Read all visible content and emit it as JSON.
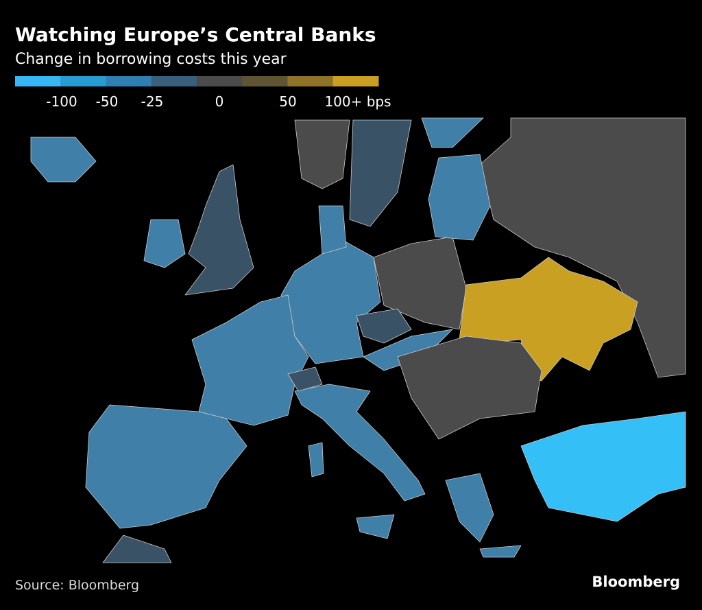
{
  "header": {
    "title": "Watching Europe’s Central Banks",
    "subtitle": "Change in borrowing costs this year"
  },
  "legend": {
    "colors": [
      "#36b6f2",
      "#2a9ad3",
      "#2f7fb3",
      "#395f7c",
      "#4b4b4b",
      "#5f5434",
      "#8f7428",
      "#c9a021"
    ],
    "labels": [
      "-100",
      "-50",
      "-25",
      "0",
      "50",
      "100+ bps"
    ]
  },
  "footer": {
    "source": "Source: Bloomberg",
    "logo": "Bloomberg"
  }
}
